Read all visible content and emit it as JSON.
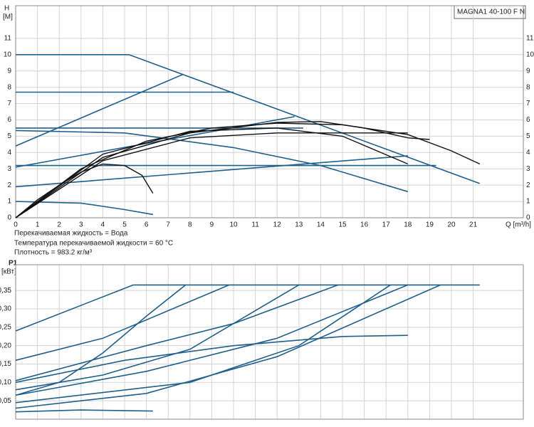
{
  "chart_data": [
    {
      "type": "line",
      "ylabel": [
        "H",
        "[M]"
      ],
      "xlabel": "Q [m³/h]",
      "legend_box": "MAGNA1 40-100 F N",
      "xlim": [
        0,
        23.3
      ],
      "ylim": [
        0,
        13
      ],
      "xticks": [
        0,
        1,
        2,
        3,
        4,
        5,
        6,
        7,
        8,
        9,
        10,
        11,
        12,
        13,
        14,
        15,
        16,
        17,
        18,
        19,
        20,
        21
      ],
      "yticks": [
        0,
        1,
        2,
        3,
        4,
        5,
        6,
        7,
        8,
        9,
        10,
        11
      ],
      "grid": true,
      "series": [
        {
          "color": "#1f5f8b",
          "x": [
            0,
            5.2,
            21.3
          ],
          "values": [
            10,
            10,
            2.1
          ]
        },
        {
          "color": "#1f5f8b",
          "x": [
            0,
            10
          ],
          "values": [
            7.7,
            7.7
          ]
        },
        {
          "color": "#1f5f8b",
          "x": [
            0,
            13.2
          ],
          "values": [
            5.5,
            5.5
          ]
        },
        {
          "color": "#1f5f8b",
          "x": [
            0,
            19.3
          ],
          "values": [
            3.2,
            3.2
          ]
        },
        {
          "color": "#1f5f8b",
          "x": [
            0,
            7.7
          ],
          "values": [
            4.4,
            8.8
          ]
        },
        {
          "color": "#1f5f8b",
          "x": [
            0,
            12.8
          ],
          "values": [
            3.1,
            6.2
          ]
        },
        {
          "color": "#1f5f8b",
          "x": [
            0,
            18
          ],
          "values": [
            1.9,
            3.8
          ]
        },
        {
          "color": "#1f5f8b",
          "x": [
            0,
            5,
            10,
            14,
            18
          ],
          "values": [
            5.35,
            5.2,
            4.3,
            3.2,
            1.6
          ]
        },
        {
          "color": "#1f5f8b",
          "x": [
            0,
            3,
            5,
            6.3
          ],
          "values": [
            1.0,
            0.9,
            0.5,
            0.2
          ]
        },
        {
          "color": "#111111",
          "x": [
            0,
            1,
            2,
            3,
            4,
            5,
            5.8,
            6.3
          ],
          "values": [
            0,
            1.1,
            2.0,
            2.8,
            3.3,
            3.2,
            2.6,
            1.5
          ]
        },
        {
          "color": "#111111",
          "x": [
            0,
            3,
            6,
            9,
            12,
            15,
            18,
            20,
            21.3
          ],
          "values": [
            0,
            3,
            4.7,
            5.5,
            5.8,
            5.7,
            5.1,
            4.1,
            3.3
          ]
        },
        {
          "color": "#111111",
          "x": [
            0,
            4,
            8,
            12,
            14,
            16,
            18,
            19
          ],
          "values": [
            0,
            3.7,
            5.2,
            5.85,
            5.9,
            5.5,
            4.9,
            4.8
          ]
        },
        {
          "color": "#111111",
          "x": [
            0,
            4,
            8,
            12,
            16,
            18
          ],
          "values": [
            0,
            3.5,
            4.9,
            5.2,
            5.2,
            5.2
          ]
        },
        {
          "color": "#111111",
          "x": [
            0,
            4,
            8,
            12,
            15,
            18
          ],
          "values": [
            0,
            3.9,
            5.3,
            5.5,
            5.0,
            3.3
          ]
        }
      ],
      "notes": [
        "Перекачиваемая жидкость = Вода",
        "Температура перекачиваемой жидкости = 60 °C",
        "Плотность = 983.2 кг/м³"
      ]
    },
    {
      "type": "line",
      "ylabel": [
        "P1",
        "[кВт]"
      ],
      "xlim": [
        0,
        23.3
      ],
      "ylim": [
        0,
        0.42
      ],
      "yticks": [
        {
          "value": 0.05,
          "label": "0,05"
        },
        {
          "value": 0.1,
          "label": "0,10"
        },
        {
          "value": 0.15,
          "label": "0,15"
        },
        {
          "value": 0.2,
          "label": "0,20"
        },
        {
          "value": 0.25,
          "label": "0,25"
        },
        {
          "value": 0.3,
          "label": "0,30"
        },
        {
          "value": 0.35,
          "label": "0,35"
        }
      ],
      "grid": true,
      "series": [
        {
          "color": "#1f5f8b",
          "x": [
            5.4,
            21.3
          ],
          "values": [
            0.365,
            0.365
          ]
        },
        {
          "color": "#1f5f8b",
          "x": [
            0,
            5.4
          ],
          "values": [
            0.24,
            0.365
          ]
        },
        {
          "color": "#1f5f8b",
          "x": [
            0,
            4,
            9.8
          ],
          "values": [
            0.16,
            0.22,
            0.365
          ]
        },
        {
          "color": "#1f5f8b",
          "x": [
            0,
            2,
            4,
            6,
            7.8
          ],
          "values": [
            0.065,
            0.1,
            0.18,
            0.28,
            0.365
          ]
        },
        {
          "color": "#1f5f8b",
          "x": [
            0,
            6,
            10,
            14.8
          ],
          "values": [
            0.105,
            0.2,
            0.26,
            0.365
          ]
        },
        {
          "color": "#1f5f8b",
          "x": [
            0,
            4,
            8,
            13
          ],
          "values": [
            0.08,
            0.12,
            0.19,
            0.365
          ]
        },
        {
          "color": "#1f5f8b",
          "x": [
            0,
            6,
            12,
            18
          ],
          "values": [
            0.065,
            0.13,
            0.22,
            0.365
          ]
        },
        {
          "color": "#1f5f8b",
          "x": [
            0,
            6,
            12,
            19.5
          ],
          "values": [
            0.03,
            0.07,
            0.17,
            0.365
          ]
        },
        {
          "color": "#1f5f8b",
          "x": [
            0,
            8,
            13,
            17.2
          ],
          "values": [
            0.045,
            0.1,
            0.2,
            0.365
          ]
        },
        {
          "color": "#1f5f8b",
          "x": [
            0,
            5,
            10,
            15,
            18
          ],
          "values": [
            0.1,
            0.16,
            0.2,
            0.225,
            0.228
          ]
        },
        {
          "color": "#1f5f8b",
          "x": [
            0,
            3,
            6.3
          ],
          "values": [
            0.02,
            0.025,
            0.022
          ]
        }
      ]
    }
  ]
}
